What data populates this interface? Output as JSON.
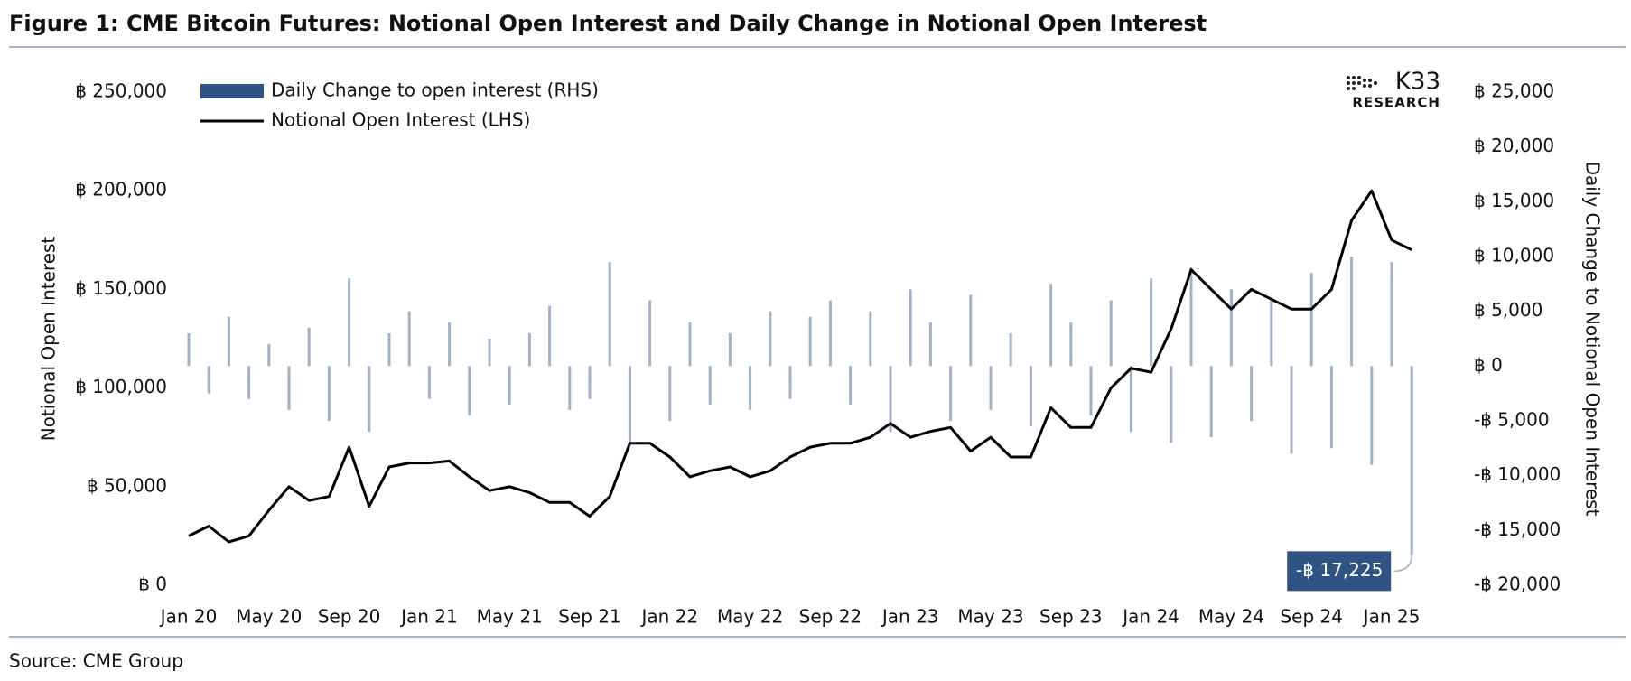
{
  "title": "Figure 1: CME Bitcoin Futures: Notional Open Interest and Daily Change in Notional Open Interest",
  "source": "Source: CME Group",
  "logo": {
    "name": "K33",
    "sub": "RESEARCH"
  },
  "chart_data": {
    "type": "bar",
    "ylabel": "Notional Open Interest",
    "y2label": "Daily Change to Notional Open Interest",
    "annotation": "-฿ 17,225",
    "categories": [
      "Jan 20",
      null,
      null,
      null,
      "May 20",
      null,
      null,
      null,
      "Sep 20",
      null,
      null,
      null,
      "Jan 21",
      null,
      null,
      null,
      "May 21",
      null,
      null,
      null,
      "Sep 21",
      null,
      null,
      null,
      "Jan 22",
      null,
      null,
      null,
      "May 22",
      null,
      null,
      null,
      "Sep 22",
      null,
      null,
      null,
      "Jan 23",
      null,
      null,
      null,
      "May 23",
      null,
      null,
      null,
      "Sep 23",
      null,
      null,
      null,
      "Jan 24",
      null,
      null,
      null,
      "May 24",
      null,
      null,
      null,
      "Sep 24",
      null,
      null,
      null,
      "Jan 25",
      null
    ],
    "series": [
      {
        "name": "Daily Change to open interest (RHS)",
        "type": "bar",
        "axis": "y2",
        "color": "#2f5383",
        "values": [
          3000,
          -2500,
          4500,
          -3000,
          2000,
          -4000,
          3500,
          -5000,
          8000,
          -6000,
          3000,
          5000,
          -3000,
          4000,
          -4500,
          2500,
          -3500,
          3000,
          5500,
          -4000,
          -3000,
          9500,
          -7000,
          6000,
          -5000,
          4000,
          -3500,
          3000,
          -4000,
          5000,
          -3000,
          4500,
          6000,
          -3500,
          5000,
          -6000,
          7000,
          4000,
          -5000,
          6500,
          -4000,
          3000,
          -5500,
          7500,
          4000,
          -4500,
          6000,
          -6000,
          8000,
          -7000,
          9000,
          -6500,
          7000,
          -5000,
          6000,
          -8000,
          8500,
          -7500,
          10000,
          -9000,
          9500,
          -17225
        ]
      },
      {
        "name": "Notional Open Interest (LHS)",
        "type": "line",
        "color": "#000000",
        "values": [
          25000,
          30000,
          22000,
          25000,
          38000,
          50000,
          43000,
          45000,
          70000,
          40000,
          60000,
          62000,
          62000,
          63000,
          55000,
          48000,
          50000,
          47000,
          42000,
          42000,
          35000,
          45000,
          72000,
          72000,
          65000,
          55000,
          58000,
          60000,
          55000,
          58000,
          65000,
          70000,
          72000,
          72000,
          75000,
          82000,
          75000,
          78000,
          80000,
          68000,
          75000,
          65000,
          65000,
          90000,
          80000,
          80000,
          100000,
          110000,
          108000,
          130000,
          160000,
          150000,
          140000,
          150000,
          145000,
          140000,
          140000,
          150000,
          185000,
          200000,
          175000,
          170000
        ]
      }
    ],
    "ylim": [
      0,
      250000
    ],
    "yticks": [
      {
        "value": 0,
        "label": "฿ 0"
      },
      {
        "value": 50000,
        "label": "฿ 50,000"
      },
      {
        "value": 100000,
        "label": "฿ 100,000"
      },
      {
        "value": 150000,
        "label": "฿ 150,000"
      },
      {
        "value": 200000,
        "label": "฿ 200,000"
      },
      {
        "value": 250000,
        "label": "฿ 250,000"
      }
    ],
    "y2lim": [
      -20000,
      25000
    ],
    "y2ticks": [
      {
        "value": -20000,
        "label": "-฿ 20,000"
      },
      {
        "value": -15000,
        "label": "-฿ 15,000"
      },
      {
        "value": -10000,
        "label": "-฿ 10,000"
      },
      {
        "value": -5000,
        "label": "-฿ 5,000"
      },
      {
        "value": 0,
        "label": "฿ 0"
      },
      {
        "value": 5000,
        "label": "฿ 5,000"
      },
      {
        "value": 10000,
        "label": "฿ 10,000"
      },
      {
        "value": 15000,
        "label": "฿ 15,000"
      },
      {
        "value": 20000,
        "label": "฿ 20,000"
      },
      {
        "value": 25000,
        "label": "฿ 25,000"
      }
    ],
    "grid": false
  }
}
